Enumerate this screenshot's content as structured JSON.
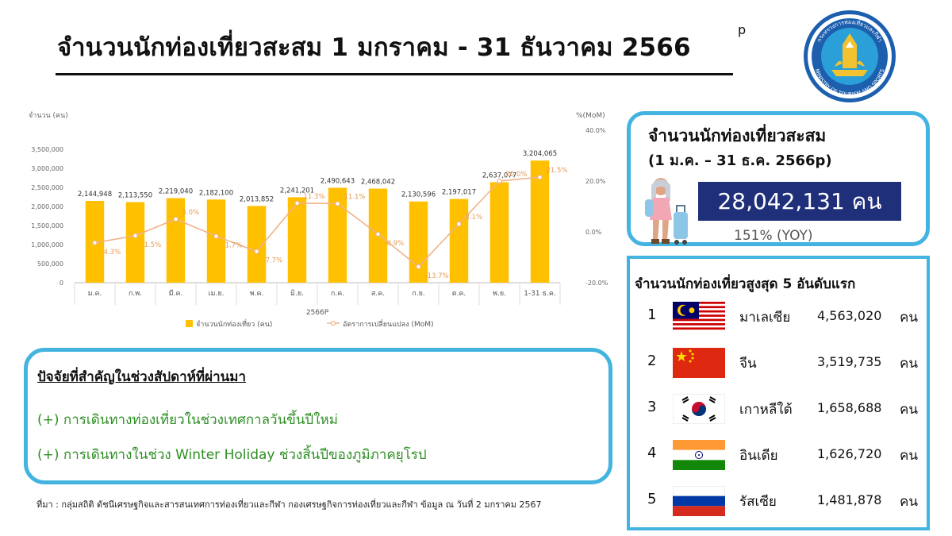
{
  "header": {
    "title": "จำนวนนักท่องเที่ยวสะสม 1 มกราคม - 31 ธันวาคม 2566",
    "title_sup": "p",
    "logo_text": "กระทรวงการท่องเที่ยวและกีฬา",
    "logo_text_en": "MINISTRY OF TOURISM AND SPORTS"
  },
  "chart_data": {
    "type": "bar",
    "categories": [
      "ม.ค.",
      "ก.พ.",
      "มี.ค.",
      "เม.ย.",
      "พ.ค.",
      "มิ.ย.",
      "ก.ค.",
      "ส.ค.",
      "ก.ย.",
      "ต.ค.",
      "พ.ย.",
      "1-31 ธ.ค."
    ],
    "xlabel": "2566P",
    "ylabel": "จำนวน (คน)",
    "y2label": "%(MoM)",
    "ylim": [
      0,
      4000000
    ],
    "y2lim": [
      -20,
      40
    ],
    "y_ticks": [
      "0",
      "500,000",
      "1,000,000",
      "1,500,000",
      "2,000,000",
      "2,500,000",
      "3,000,000",
      "3,500,000"
    ],
    "y2_ticks": [
      "-20.0%",
      "0.0%",
      "20.0%",
      "40.0%"
    ],
    "series": [
      {
        "name": "จำนวนนักท่องเที่ยว (คน)",
        "kind": "bar",
        "color": "#ffc000",
        "values": [
          2144948,
          2113550,
          2219040,
          2182100,
          2013852,
          2241201,
          2490643,
          2468042,
          2130596,
          2197017,
          2637077,
          3204065
        ],
        "labels": [
          "2,144,948",
          "2,113,550",
          "2,219,040",
          "2,182,100",
          "2,013,852",
          "2,241,201",
          "2,490,643",
          "2,468,042",
          "2,130,596",
          "2,197,017",
          "2,637,077",
          "3,204,065"
        ]
      },
      {
        "name": "อัตราการเปลี่ยนแปลง (MoM)",
        "kind": "line",
        "axis": "right",
        "color": "#f0b38a",
        "label_color": "#e59a55",
        "values": [
          -4.3,
          -1.5,
          5.0,
          -1.7,
          -7.7,
          11.3,
          11.1,
          -0.9,
          -13.7,
          3.1,
          20.0,
          21.5
        ],
        "labels": [
          "-4.3%",
          "-1.5%",
          "5.0%",
          "-1.7%",
          "-7.7%",
          "11.3%",
          "11.1%",
          "-0.9%",
          "-13.7%",
          "3.1%",
          "20.0%",
          "21.5%"
        ]
      }
    ],
    "legend_position": "bottom",
    "grid": false
  },
  "summary": {
    "title": "จำนวนนักท่องเที่ยวสะสม",
    "period": "(1 ม.ค. – 31 ธ.ค. 2566p)",
    "total": "28,042,131 คน",
    "yoy": "151% (YOY)"
  },
  "top5": {
    "title": "จำนวนนักท่องเที่ยวสูงสุด 5 อันดับแรก",
    "items": [
      {
        "rank": "1",
        "country": "มาเลเซีย",
        "count": "4,563,020",
        "unit": "คน",
        "flag": "malaysia-flag"
      },
      {
        "rank": "2",
        "country": "จีน",
        "count": "3,519,735",
        "unit": "คน",
        "flag": "china-flag"
      },
      {
        "rank": "3",
        "country": "เกาหลีใต้",
        "count": "1,658,688",
        "unit": "คน",
        "flag": "south-korea-flag"
      },
      {
        "rank": "4",
        "country": "อินเดีย",
        "count": "1,626,720",
        "unit": "คน",
        "flag": "india-flag"
      },
      {
        "rank": "5",
        "country": "รัสเซีย",
        "count": "1,481,878",
        "unit": "คน",
        "flag": "russia-flag"
      }
    ]
  },
  "factors": {
    "title": "ปัจจัยที่สำคัญในช่วงสัปดาห์ที่ผ่านมา",
    "items": [
      "(+) การเดินทางท่องเที่ยวในช่วงเทศกาลวันขึ้นปีใหม่",
      "(+) การเดินทางในช่วง Winter Holiday ช่วงสิ้นปีของภูมิภาคยุโรป"
    ]
  },
  "source": "ที่มา : กลุ่มสถิติ ดัชนีเศรษฐกิจและสารสนเทศการท่องเที่ยวและกีฬา กองเศรษฐกิจการท่องเที่ยวและกีฬา ข้อมูล ณ วันที่ 2 มกราคม 2567",
  "colors": {
    "accent_border": "#43b4e0",
    "total_bg": "#1f2f7a",
    "factor_text": "#2f8f25"
  }
}
